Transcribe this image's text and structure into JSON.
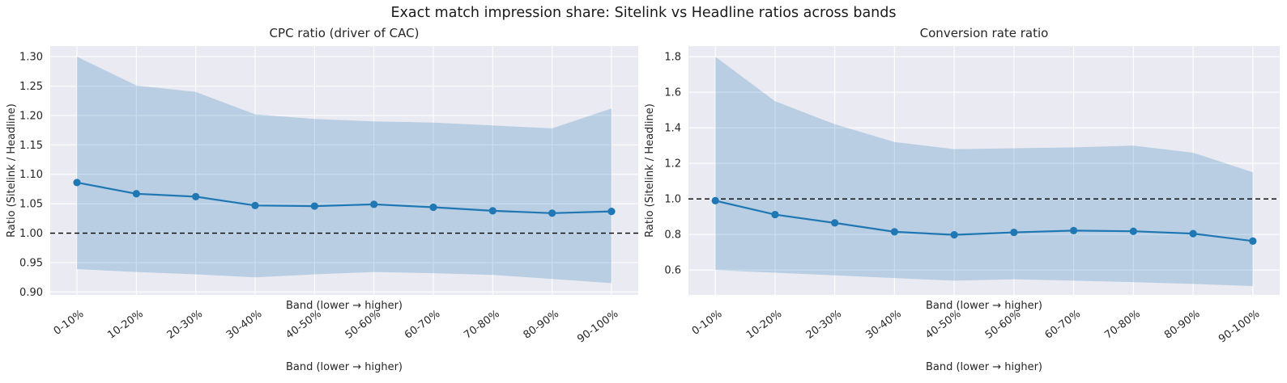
{
  "title": "Exact match impression share: Sitelink vs Headline ratios across bands",
  "colors": {
    "line": "#1f77b4",
    "band_fill": "#1f77b4",
    "band_opacity": 0.24,
    "axes_background": "#eaeaf2",
    "grid": "#ffffff",
    "reference_line": "#000000",
    "text": "#262626"
  },
  "chart_data": [
    {
      "type": "line",
      "title": "CPC ratio (driver of CAC)",
      "xlabel": "Band (lower → higher)",
      "xlabel_below_ticks": "Band (lower → higher)",
      "ylabel": "Ratio (Sitelink / Headline)",
      "categories": [
        "0-10%",
        "10-20%",
        "20-30%",
        "30-40%",
        "40-50%",
        "50-60%",
        "60-70%",
        "70-80%",
        "80-90%",
        "90-100%"
      ],
      "series": [
        {
          "name": "Sitelink / Headline CPC ratio",
          "values": [
            1.086,
            1.067,
            1.062,
            1.047,
            1.046,
            1.049,
            1.044,
            1.038,
            1.034,
            1.037
          ]
        }
      ],
      "band_upper": [
        1.3,
        1.251,
        1.24,
        1.202,
        1.194,
        1.19,
        1.188,
        1.183,
        1.178,
        1.212
      ],
      "band_lower": [
        0.939,
        0.934,
        0.93,
        0.925,
        0.93,
        0.934,
        0.932,
        0.929,
        0.922,
        0.915
      ],
      "reference_y": 1.0,
      "yticks": [
        0.9,
        0.95,
        1.0,
        1.05,
        1.1,
        1.15,
        1.2,
        1.25,
        1.3
      ],
      "ytick_labels": [
        "0.90",
        "0.95",
        "1.00",
        "1.05",
        "1.10",
        "1.15",
        "1.20",
        "1.25",
        "1.30"
      ],
      "ylim": [
        0.895,
        1.318
      ],
      "grid": true,
      "legend": "none"
    },
    {
      "type": "line",
      "title": "Conversion rate ratio",
      "xlabel": "Band (lower → higher)",
      "xlabel_below_ticks": "Band (lower → higher)",
      "ylabel": "Ratio (Sitelink / Headline)",
      "categories": [
        "0-10%",
        "10-20%",
        "20-30%",
        "30-40%",
        "40-50%",
        "50-60%",
        "60-70%",
        "70-80%",
        "80-90%",
        "90-100%"
      ],
      "series": [
        {
          "name": "Sitelink / Headline conversion rate ratio",
          "values": [
            0.99,
            0.912,
            0.865,
            0.815,
            0.798,
            0.812,
            0.822,
            0.818,
            0.805,
            0.763
          ]
        }
      ],
      "band_upper": [
        1.8,
        1.55,
        1.42,
        1.32,
        1.28,
        1.285,
        1.29,
        1.3,
        1.26,
        1.15
      ],
      "band_lower": [
        0.6,
        0.585,
        0.57,
        0.555,
        0.54,
        0.548,
        0.54,
        0.532,
        0.522,
        0.51
      ],
      "reference_y": 1.0,
      "yticks": [
        0.6,
        0.8,
        1.0,
        1.2,
        1.4,
        1.6,
        1.8
      ],
      "ytick_labels": [
        "0.6",
        "0.8",
        "1.0",
        "1.2",
        "1.4",
        "1.6",
        "1.8"
      ],
      "ylim": [
        0.46,
        1.86
      ],
      "grid": true,
      "legend": "none"
    }
  ]
}
